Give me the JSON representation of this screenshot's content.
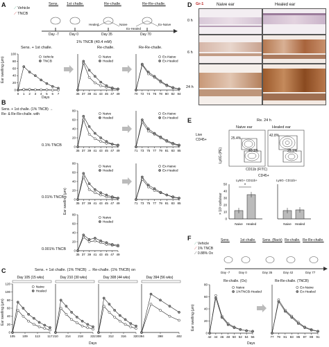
{
  "panel_labels": [
    "A",
    "B",
    "C",
    "D",
    "E",
    "F"
  ],
  "A": {
    "legend": [
      "Vehicle",
      "TNCB"
    ],
    "timeline_days": [
      "Day -7",
      "Day 0",
      "Day 35",
      "Day 70"
    ],
    "stage_labels": [
      "Sens.",
      "1st challe.",
      "Re-challe.",
      "Re-Re-challe."
    ],
    "group_labels": [
      "Healed",
      "Naive",
      "Ex-Healed",
      "Ex-Naive"
    ],
    "top_caption": "1% TNCB (40.4 mM)",
    "header_left": "Sens. + 1st challe.",
    "header_mid": "Re-challe.",
    "header_right": "Re-Re-challe.",
    "ylabel": "Ear swelling (μm)",
    "xlabel": "Days",
    "ticks_x1": [
      "0",
      "1",
      "2",
      "3",
      "4",
      "5",
      "6",
      "7"
    ],
    "ticks_x2": [
      "35",
      "37",
      "39",
      "41",
      "43",
      "45",
      "47",
      "49"
    ],
    "ticks_x3": [
      "70",
      "72",
      "74",
      "76",
      "78",
      "80",
      "82",
      "84"
    ],
    "ticks_y": [
      "0",
      "20",
      "40",
      "60",
      "80",
      "100"
    ],
    "legend1": [
      "Vehicle",
      "TNCB"
    ],
    "legend2": [
      "Naive",
      "Healed"
    ],
    "legend3": [
      "Ex-Naive",
      "Ex-Healed"
    ]
  },
  "B": {
    "title": "Sens. + 1st challe. (1% TNCB) → Re- & Re-Re-challe. with",
    "row_labels": [
      "0.1% TNCB",
      "0.01% TNCB",
      "0.001% TNCB"
    ],
    "ylabel": "Ear swelling (μm)",
    "xlabel": "Days",
    "ticks_x2": [
      "35",
      "37",
      "39",
      "41",
      "43",
      "45",
      "47",
      "49"
    ],
    "ticks_x3": [
      "71",
      "73",
      "75",
      "77",
      "79",
      "81",
      "83",
      "85"
    ],
    "ticks_y": [
      "0",
      "20",
      "40",
      "60",
      "80"
    ],
    "legend2": [
      "Naive",
      "Healed"
    ],
    "legend3": [
      "Ex-Naive",
      "Ex-Healed"
    ]
  },
  "C": {
    "title": "Sens. + 1st challe. (1% TNCB) → Re-challe. (1% TNCB) on",
    "subtitles": [
      "Day 105 (15 wks)",
      "Day 210 (30 wks)",
      "Day 308 (44 wks)",
      "Day 394 (56 wks)"
    ],
    "ylabel": "Ear swelling (μm)",
    "xlabel": "Days",
    "ticks": [
      [
        "105",
        "109",
        "113",
        "117"
      ],
      [
        "210",
        "214",
        "218",
        "222"
      ],
      [
        "308",
        "312",
        "316",
        "320"
      ],
      [
        "394",
        "398",
        "402"
      ]
    ],
    "ticks_y": [
      "0",
      "20",
      "40",
      "60",
      "80",
      "100",
      "120"
    ],
    "legend": [
      "Naive",
      "Healed"
    ]
  },
  "D": {
    "stain": "Gr-1",
    "cols": [
      "Naive ear",
      "Healed ear"
    ],
    "rows": [
      "0 h",
      "6 h",
      "24 h"
    ]
  },
  "E": {
    "header": "Re. 24 h",
    "flow_cols": [
      "Naive ear",
      "Healed ear"
    ],
    "gate": "Live CD45+",
    "flow_y": "Ly6G (PE)",
    "flow_x": "CD11b (FITC)",
    "pcts": [
      "25.4%",
      "40.1%",
      "42.8%",
      "25.1%"
    ],
    "bar_header": "CD45+",
    "bar_groups": [
      "Ly6G+ CD11b+",
      "Ly6G- CD11b+"
    ],
    "bar_cats": [
      "Naive",
      "Healed"
    ],
    "bar_ylabel": "× 10³ cells/ear",
    "bar_ticks": [
      "0",
      "10",
      "20",
      "30",
      "40",
      "50"
    ],
    "sig": "*"
  },
  "F": {
    "legend": [
      "Vehicle",
      "1% TNCB",
      "0.88% Ox"
    ],
    "stage_labels": [
      "Sens.",
      "1st challe.",
      "Sens. (Back)",
      "Re-challe.",
      "Re-Re-challe."
    ],
    "timeline_days": [
      "Day -7",
      "Day 0",
      "Day 35",
      "Day 42",
      "Day 77"
    ],
    "plot1_title": "Re-challe. (Ox)",
    "plot2_title": "Re-Re-challe. (TNCB)",
    "legend1": [
      "Naive",
      "1%TNCB-Healed"
    ],
    "legend2": [
      "Ex-Naive",
      "Ex-Healed"
    ],
    "ylabel": "Ear swelling (μm)",
    "xlabel": "Days",
    "ticks_x1": [
      "42",
      "44",
      "46",
      "48",
      "50",
      "52",
      "54",
      "56"
    ],
    "ticks_x2": [
      "77",
      "79",
      "81",
      "83",
      "85",
      "87",
      "89",
      "91"
    ],
    "ticks_y": [
      "0",
      "20",
      "40",
      "60",
      "80"
    ]
  },
  "chart_data": [
    {
      "type": "line",
      "panel": "A-1",
      "x": [
        0,
        1,
        2,
        3,
        4,
        5,
        6,
        7
      ],
      "series": [
        {
          "name": "Vehicle",
          "values": [
            0,
            2,
            2,
            1,
            1,
            1,
            0,
            0
          ]
        },
        {
          "name": "TNCB",
          "values": [
            0,
            65,
            50,
            40,
            28,
            18,
            10,
            5
          ]
        }
      ],
      "ylim": [
        0,
        100
      ]
    },
    {
      "type": "line",
      "panel": "A-2",
      "x": [
        35,
        37,
        39,
        41,
        43,
        45,
        47,
        49
      ],
      "series": [
        {
          "name": "Naive",
          "values": [
            0,
            75,
            35,
            20,
            12,
            8,
            5,
            3
          ]
        },
        {
          "name": "Healed",
          "values": [
            0,
            80,
            55,
            38,
            22,
            12,
            6,
            3
          ]
        }
      ],
      "ylim": [
        0,
        100
      ]
    },
    {
      "type": "line",
      "panel": "A-3",
      "x": [
        70,
        72,
        74,
        76,
        78,
        80,
        82,
        84
      ],
      "series": [
        {
          "name": "Ex-Naive",
          "values": [
            0,
            70,
            45,
            35,
            22,
            12,
            6,
            3
          ]
        },
        {
          "name": "Ex-Healed",
          "values": [
            0,
            72,
            50,
            38,
            25,
            14,
            7,
            3
          ]
        }
      ],
      "ylim": [
        0,
        100
      ]
    }
  ]
}
